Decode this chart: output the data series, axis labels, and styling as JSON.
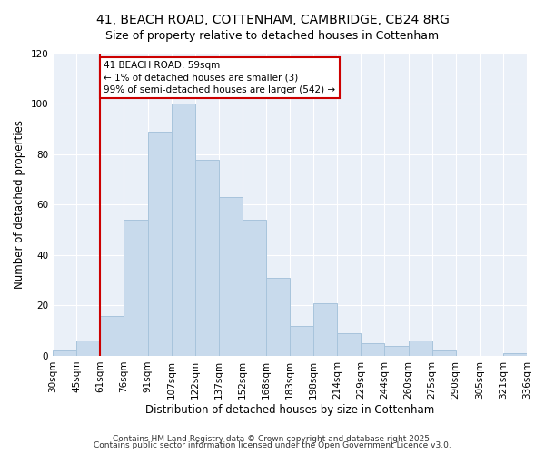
{
  "title": "41, BEACH ROAD, COTTENHAM, CAMBRIDGE, CB24 8RG",
  "subtitle": "Size of property relative to detached houses in Cottenham",
  "xlabel": "Distribution of detached houses by size in Cottenham",
  "ylabel": "Number of detached properties",
  "bins": [
    "30sqm",
    "45sqm",
    "61sqm",
    "76sqm",
    "91sqm",
    "107sqm",
    "122sqm",
    "137sqm",
    "152sqm",
    "168sqm",
    "183sqm",
    "198sqm",
    "214sqm",
    "229sqm",
    "244sqm",
    "260sqm",
    "275sqm",
    "290sqm",
    "305sqm",
    "321sqm",
    "336sqm"
  ],
  "counts": [
    2,
    6,
    16,
    54,
    89,
    100,
    78,
    63,
    54,
    31,
    12,
    21,
    9,
    5,
    4,
    6,
    2,
    0,
    0,
    1
  ],
  "bar_color": "#c8daec",
  "bar_edge_color": "#a8c4dc",
  "vline_color": "#cc0000",
  "ylim": [
    0,
    120
  ],
  "yticks": [
    0,
    20,
    40,
    60,
    80,
    100,
    120
  ],
  "annotation_title": "41 BEACH ROAD: 59sqm",
  "annotation_line1": "← 1% of detached houses are smaller (3)",
  "annotation_line2": "99% of semi-detached houses are larger (542) →",
  "annotation_box_color": "#ffffff",
  "annotation_box_edge": "#cc0000",
  "footer1": "Contains HM Land Registry data © Crown copyright and database right 2025.",
  "footer2": "Contains public sector information licensed under the Open Government Licence v3.0.",
  "background_color": "#ffffff",
  "plot_bg_color": "#eaf0f8",
  "grid_color": "#ffffff",
  "title_fontsize": 10,
  "subtitle_fontsize": 9,
  "axis_label_fontsize": 8.5,
  "tick_fontsize": 7.5,
  "footer_fontsize": 6.5,
  "annotation_fontsize": 7.5
}
